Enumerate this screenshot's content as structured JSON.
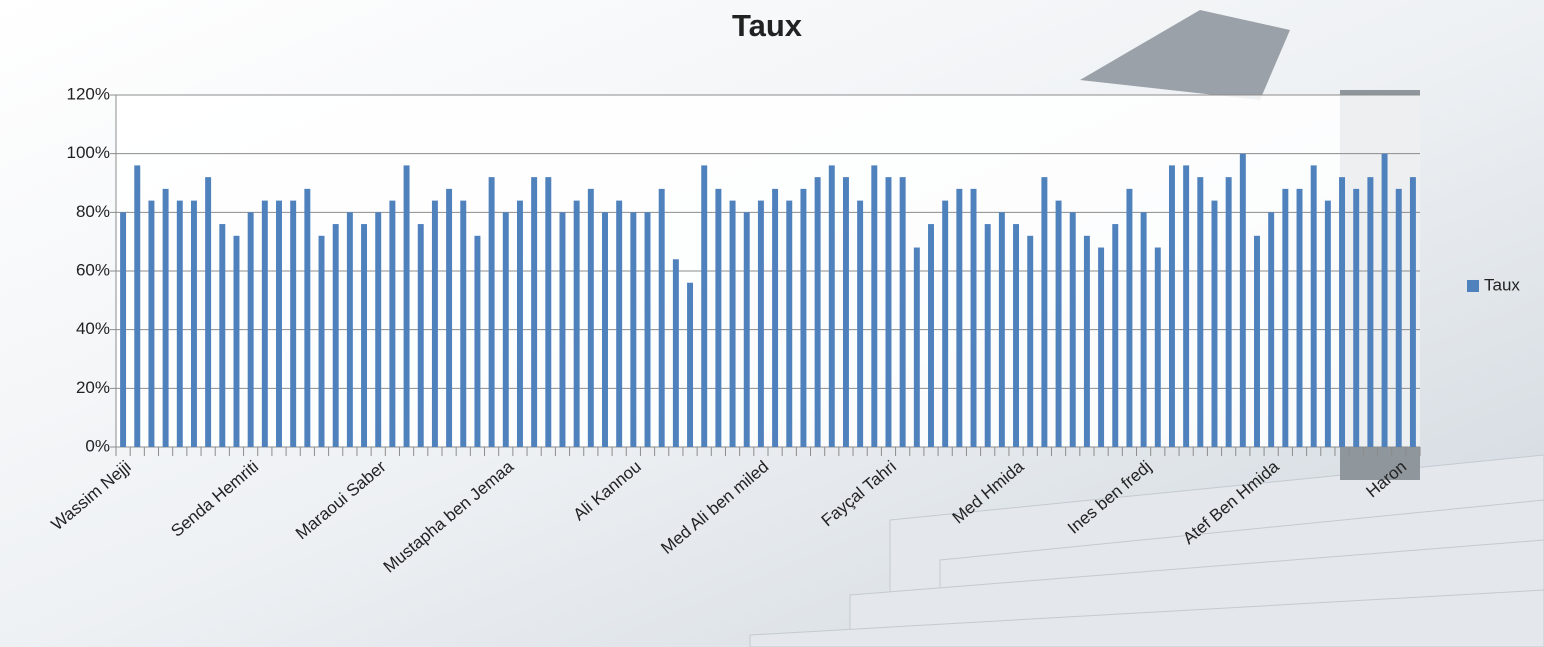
{
  "chart_data": {
    "type": "bar",
    "title": "Taux",
    "categories": [
      "Wassim Nejji",
      null,
      null,
      null,
      null,
      null,
      null,
      null,
      null,
      "Senda Hemriti",
      null,
      null,
      null,
      null,
      null,
      null,
      null,
      null,
      "Maraoui Saber",
      null,
      null,
      null,
      null,
      null,
      null,
      null,
      null,
      "Mustapha ben Jemaa",
      null,
      null,
      null,
      null,
      null,
      null,
      null,
      null,
      "Ali Kannou",
      null,
      null,
      null,
      null,
      null,
      null,
      null,
      null,
      "Med Ali ben miled",
      null,
      null,
      null,
      null,
      null,
      null,
      null,
      null,
      "Fayçal Tahri",
      null,
      null,
      null,
      null,
      null,
      null,
      null,
      null,
      "Med Hmida",
      null,
      null,
      null,
      null,
      null,
      null,
      null,
      null,
      "Ines ben fredj",
      null,
      null,
      null,
      null,
      null,
      null,
      null,
      null,
      "Atef Ben Hmida",
      null,
      null,
      null,
      null,
      null,
      null,
      null,
      null,
      "Haron",
      null
    ],
    "series": [
      {
        "name": "Taux",
        "color": "#4f81bd",
        "values": [
          80,
          96,
          84,
          88,
          84,
          84,
          92,
          76,
          72,
          80,
          84,
          84,
          84,
          88,
          72,
          76,
          80,
          76,
          80,
          84,
          96,
          76,
          84,
          88,
          84,
          72,
          92,
          80,
          84,
          92,
          92,
          80,
          84,
          88,
          80,
          84,
          80,
          80,
          88,
          64,
          56,
          96,
          88,
          84,
          80,
          84,
          88,
          84,
          88,
          92,
          96,
          92,
          84,
          96,
          92,
          92,
          68,
          76,
          84,
          88,
          88,
          76,
          80,
          76,
          72,
          92,
          84,
          80,
          72,
          68,
          76,
          88,
          80,
          68,
          96,
          96,
          92,
          84,
          92,
          100,
          72,
          80,
          88,
          88,
          96,
          84,
          92,
          88,
          92,
          100,
          88,
          92
        ]
      }
    ],
    "ylim": [
      0,
      120
    ],
    "yticks": [
      {
        "value": 0,
        "label": "0%"
      },
      {
        "value": 20,
        "label": "20%"
      },
      {
        "value": 40,
        "label": "40%"
      },
      {
        "value": 60,
        "label": "60%"
      },
      {
        "value": 80,
        "label": "80%"
      },
      {
        "value": 100,
        "label": "100%"
      },
      {
        "value": 120,
        "label": "120%"
      }
    ],
    "grid": true,
    "legend": "right"
  }
}
